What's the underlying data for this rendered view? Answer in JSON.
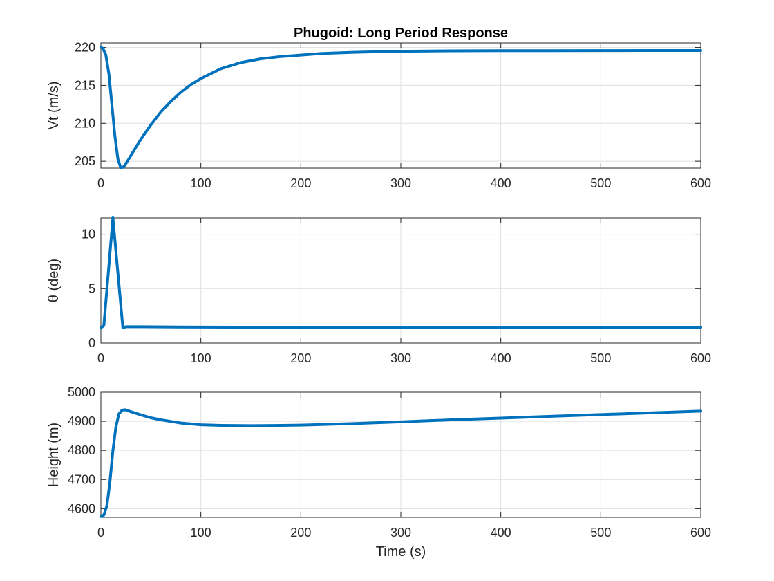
{
  "chart_data": [
    {
      "type": "line",
      "title": "Phugoid: Long Period Response",
      "xlabel": "",
      "ylabel": "Vt (m/s)",
      "xlim": [
        0,
        600
      ],
      "ylim": [
        204.1,
        220.6
      ],
      "xticks": [
        0,
        100,
        200,
        300,
        400,
        500,
        600
      ],
      "yticks": [
        205,
        210,
        215,
        220
      ],
      "grid": true,
      "series": [
        {
          "color": "#0072bd",
          "x": [
            0,
            2,
            5,
            8,
            11,
            14,
            17,
            20,
            23,
            27,
            32,
            40,
            50,
            60,
            70,
            80,
            90,
            100,
            120,
            140,
            160,
            180,
            200,
            220,
            250,
            280,
            300,
            350,
            400,
            450,
            500,
            550,
            600
          ],
          "y": [
            220,
            219.9,
            219.0,
            216.5,
            212.5,
            208.3,
            205.3,
            204.1,
            204.3,
            205.1,
            206.2,
            207.9,
            209.8,
            211.5,
            212.9,
            214.1,
            215.1,
            215.9,
            217.2,
            218.0,
            218.5,
            218.8,
            219.0,
            219.2,
            219.35,
            219.45,
            219.5,
            219.55,
            219.57,
            219.58,
            219.59,
            219.6,
            219.6
          ]
        }
      ]
    },
    {
      "type": "line",
      "title": "",
      "xlabel": "",
      "ylabel": "θ (deg)",
      "xlim": [
        0,
        600
      ],
      "ylim": [
        0,
        11.5
      ],
      "xticks": [
        0,
        100,
        200,
        300,
        400,
        500,
        600
      ],
      "yticks": [
        0,
        5,
        10
      ],
      "grid": true,
      "series": [
        {
          "color": "#0072bd",
          "x": [
            0,
            3,
            12,
            22,
            25,
            40,
            100,
            200,
            300,
            400,
            500,
            600
          ],
          "y": [
            1.4,
            1.6,
            11.5,
            1.4,
            1.5,
            1.5,
            1.47,
            1.45,
            1.45,
            1.45,
            1.45,
            1.45
          ]
        }
      ]
    },
    {
      "type": "line",
      "title": "",
      "xlabel": "Time (s)",
      "ylabel": "Height (m)",
      "xlim": [
        0,
        600
      ],
      "ylim": [
        4570,
        5000
      ],
      "xticks": [
        0,
        100,
        200,
        300,
        400,
        500,
        600
      ],
      "yticks": [
        4600,
        4700,
        4800,
        4900,
        5000
      ],
      "grid": true,
      "series": [
        {
          "color": "#0072bd",
          "x": [
            0,
            3,
            6,
            9,
            12,
            15,
            18,
            21,
            24,
            30,
            40,
            50,
            60,
            80,
            100,
            120,
            150,
            180,
            200,
            250,
            300,
            350,
            400,
            450,
            500,
            550,
            600
          ],
          "y": [
            4573,
            4578,
            4610,
            4690,
            4800,
            4880,
            4925,
            4938,
            4940,
            4933,
            4922,
            4912,
            4905,
            4894,
            4888,
            4886,
            4885,
            4886,
            4887,
            4892,
            4898,
            4905,
            4911,
            4917,
            4923,
            4929,
            4935
          ]
        }
      ]
    }
  ]
}
